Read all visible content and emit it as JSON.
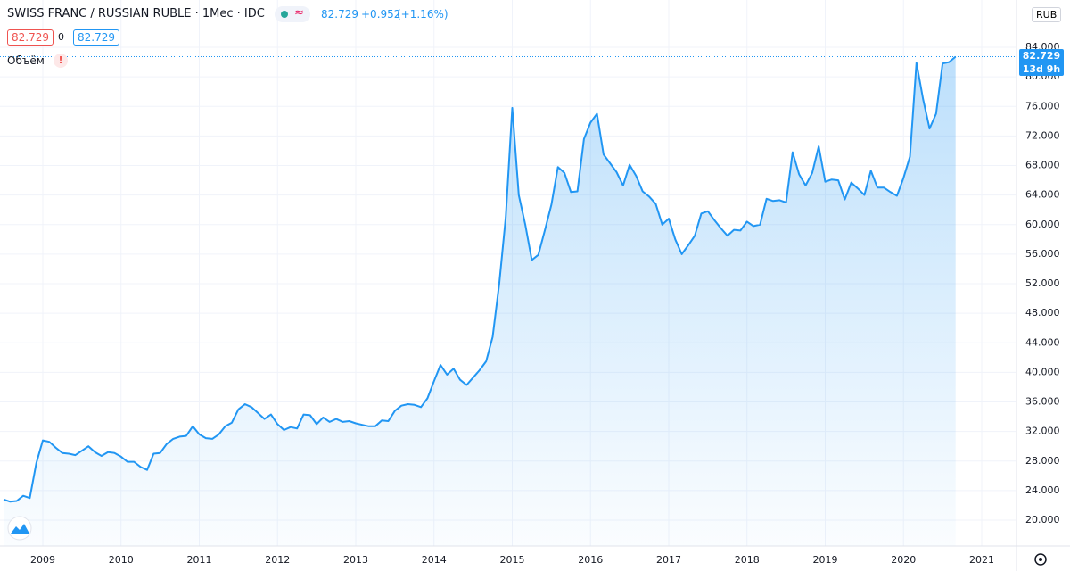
{
  "header": {
    "title": "SWISS FRANC / RUSSIAN RUBLE · 1Мес · IDC",
    "change": "+0.952",
    "change_pct": "(+1.16%)",
    "spread": "0",
    "volume": "Объём",
    "currency": "RUB",
    "countdown": "13d 9h"
  },
  "chart_data": {
    "type": "area",
    "color": "#2196f3",
    "grid": true,
    "categories": [
      null,
      null,
      null,
      null,
      null,
      null,
      "2009",
      null,
      null,
      null,
      null,
      null,
      null,
      null,
      null,
      null,
      null,
      null,
      "2010",
      null,
      null,
      null,
      null,
      null,
      null,
      null,
      null,
      null,
      null,
      null,
      "2011",
      null,
      null,
      null,
      null,
      null,
      null,
      null,
      null,
      null,
      null,
      null,
      "2012",
      null,
      null,
      null,
      null,
      null,
      null,
      null,
      null,
      null,
      null,
      null,
      "2013",
      null,
      null,
      null,
      null,
      null,
      null,
      null,
      null,
      null,
      null,
      null,
      "2014",
      null,
      null,
      null,
      null,
      null,
      null,
      null,
      null,
      null,
      null,
      null,
      "2015",
      null,
      null,
      null,
      null,
      null,
      null,
      null,
      null,
      null,
      null,
      null,
      "2016",
      null,
      null,
      null,
      null,
      null,
      null,
      null,
      null,
      null,
      null,
      null,
      "2017",
      null,
      null,
      null,
      null,
      null,
      null,
      null,
      null,
      null,
      null,
      null,
      "2018",
      null,
      null,
      null,
      null,
      null,
      null,
      null,
      null,
      null,
      null,
      null,
      "2019",
      null,
      null,
      null,
      null,
      null,
      null,
      null,
      null,
      null,
      null,
      null,
      "2020",
      null,
      null,
      null,
      null,
      null,
      null,
      null,
      null,
      null,
      null,
      null,
      "2021",
      null,
      null,
      null,
      null,
      null
    ],
    "values": [
      22.8,
      22.5,
      22.6,
      23.3,
      23.0,
      27.7,
      30.8,
      30.6,
      29.8,
      29.1,
      29.0,
      28.8,
      29.4,
      30.0,
      29.2,
      28.7,
      29.2,
      29.1,
      28.6,
      27.9,
      27.9,
      27.2,
      26.8,
      29.0,
      29.1,
      30.3,
      31.0,
      31.3,
      31.4,
      32.7,
      31.6,
      31.1,
      31.0,
      31.6,
      32.7,
      33.2,
      35.0,
      35.7,
      35.3,
      34.5,
      33.7,
      34.3,
      33.0,
      32.2,
      32.6,
      32.4,
      34.3,
      34.2,
      33.0,
      33.9,
      33.3,
      33.7,
      33.3,
      33.4,
      33.1,
      32.9,
      32.7,
      32.7,
      33.5,
      33.4,
      34.8,
      35.5,
      35.7,
      35.6,
      35.3,
      36.5,
      38.8,
      41.0,
      39.7,
      40.5,
      39.0,
      38.3,
      39.3,
      40.3,
      41.5,
      44.8,
      52.0,
      61.0,
      75.8,
      64.0,
      60.0,
      55.2,
      55.9,
      59.2,
      62.7,
      67.8,
      67.0,
      64.4,
      64.5,
      71.6,
      73.8,
      75.0,
      69.5,
      68.3,
      67.1,
      65.3,
      68.1,
      66.6,
      64.5,
      63.8,
      62.8,
      60.0,
      60.8,
      58.0,
      56.0,
      57.2,
      58.5,
      61.5,
      61.8,
      60.6,
      59.5,
      58.5,
      59.3,
      59.2,
      60.4,
      59.8,
      60.0,
      63.5,
      63.2,
      63.3,
      63.0,
      69.8,
      66.8,
      65.3,
      67.0,
      70.6,
      65.8,
      66.1,
      66.0,
      63.4,
      65.7,
      64.9,
      64.0,
      67.3,
      65.0,
      65.0,
      64.4,
      63.9,
      66.3,
      69.2,
      81.9,
      77.0,
      73.0,
      75.0,
      81.8,
      82.0,
      82.729,
      null,
      null,
      null,
      null,
      null,
      null,
      null,
      null,
      null
    ],
    "ylim": [
      16.5,
      90.4
    ],
    "yticks": [
      {
        "value": 20,
        "label": "20.000"
      },
      {
        "value": 24,
        "label": "24.000"
      },
      {
        "value": 28,
        "label": "28.000"
      },
      {
        "value": 32,
        "label": "32.000"
      },
      {
        "value": 36,
        "label": "36.000"
      },
      {
        "value": 40,
        "label": "40.000"
      },
      {
        "value": 44,
        "label": "44.000"
      },
      {
        "value": 48,
        "label": "48.000"
      },
      {
        "value": 52,
        "label": "52.000"
      },
      {
        "value": 56,
        "label": "56.000"
      },
      {
        "value": 60,
        "label": "60.000"
      },
      {
        "value": 64,
        "label": "64.000"
      },
      {
        "value": 68,
        "label": "68.000"
      },
      {
        "value": 72,
        "label": "72.000"
      },
      {
        "value": 76,
        "label": "76.000"
      },
      {
        "value": 80,
        "label": "80.000"
      },
      {
        "value": 84,
        "label": "84.000"
      }
    ]
  }
}
